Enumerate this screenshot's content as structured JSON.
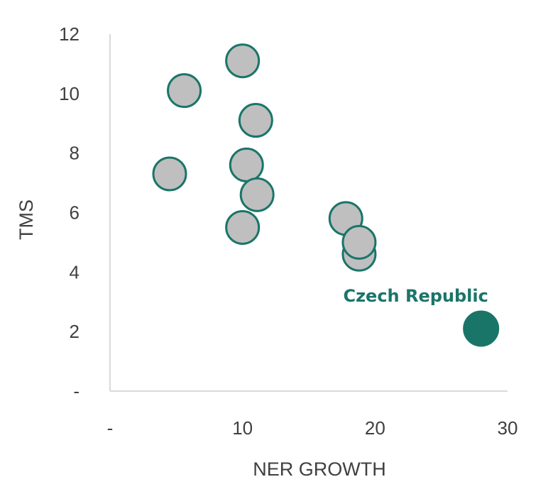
{
  "chart_data": {
    "type": "scatter",
    "title": "",
    "xlabel": "NER GROWTH",
    "ylabel": "TMS",
    "xlim": [
      0,
      30
    ],
    "ylim": [
      0,
      12
    ],
    "x_ticks": [
      {
        "value": 0,
        "label": "-"
      },
      {
        "value": 10,
        "label": "10"
      },
      {
        "value": 20,
        "label": "20"
      },
      {
        "value": 30,
        "label": "30"
      }
    ],
    "y_ticks": [
      {
        "value": 0,
        "label": "-"
      },
      {
        "value": 2,
        "label": "2"
      },
      {
        "value": 4,
        "label": "4"
      },
      {
        "value": 6,
        "label": "6"
      },
      {
        "value": 8,
        "label": "8"
      },
      {
        "value": 10,
        "label": "10"
      },
      {
        "value": 12,
        "label": "12"
      }
    ],
    "grid": false,
    "points": [
      {
        "x": 10.0,
        "y": 11.1
      },
      {
        "x": 5.6,
        "y": 10.1
      },
      {
        "x": 11.0,
        "y": 9.1
      },
      {
        "x": 4.5,
        "y": 7.3
      },
      {
        "x": 10.3,
        "y": 7.6
      },
      {
        "x": 11.1,
        "y": 6.6
      },
      {
        "x": 10.0,
        "y": 5.5
      },
      {
        "x": 17.8,
        "y": 5.8
      },
      {
        "x": 18.8,
        "y": 4.6
      },
      {
        "x": 18.8,
        "y": 5.0
      },
      {
        "x": 28.0,
        "y": 2.1,
        "highlight": true,
        "label": "Czech Republic"
      }
    ],
    "colors": {
      "point_fill": "#bfbfbf",
      "point_stroke": "#1a7569",
      "highlight_fill": "#1a7569",
      "annotation_text": "#1a7569",
      "axis": "#d9d9d9",
      "tick_text": "#404040"
    }
  }
}
